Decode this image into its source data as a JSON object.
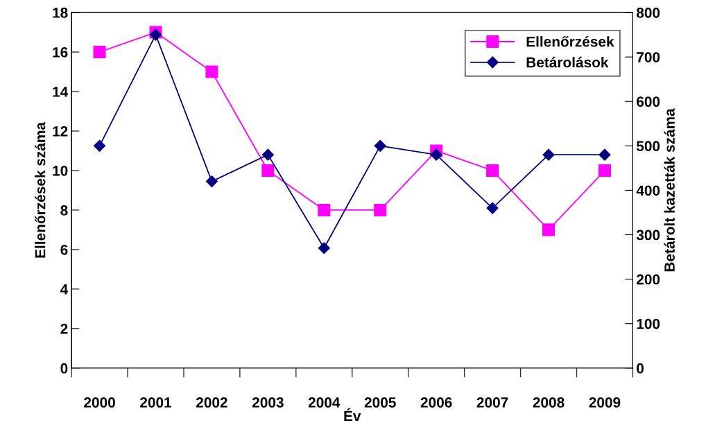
{
  "chart_data": {
    "type": "line",
    "xlabel": "Év",
    "ylabel": "Ellenőrzések száma",
    "y2label": "Betárolt kazetták száma",
    "categories": [
      "2000",
      "2001",
      "2002",
      "2003",
      "2004",
      "2005",
      "2006",
      "2007",
      "2008",
      "2009"
    ],
    "series": [
      {
        "name": "Ellenőrzések",
        "color": "#ff00ff",
        "marker": "square",
        "values": [
          16,
          17,
          15,
          10,
          8,
          8,
          11,
          10,
          7,
          10
        ]
      },
      {
        "name": "Betárolások",
        "color": "#000080",
        "marker": "diamond",
        "axis": "y2",
        "values": [
          500,
          750,
          420,
          480,
          270,
          500,
          480,
          360,
          480,
          480
        ]
      }
    ],
    "ylim": [
      0,
      18
    ],
    "yticks": [
      0,
      2,
      4,
      6,
      8,
      10,
      12,
      14,
      16,
      18
    ],
    "y2lim": [
      0,
      800
    ],
    "y2ticks": [
      0,
      100,
      200,
      300,
      400,
      500,
      600,
      700,
      800
    ],
    "grid": false,
    "legend": "top right",
    "line_style": "solid"
  }
}
